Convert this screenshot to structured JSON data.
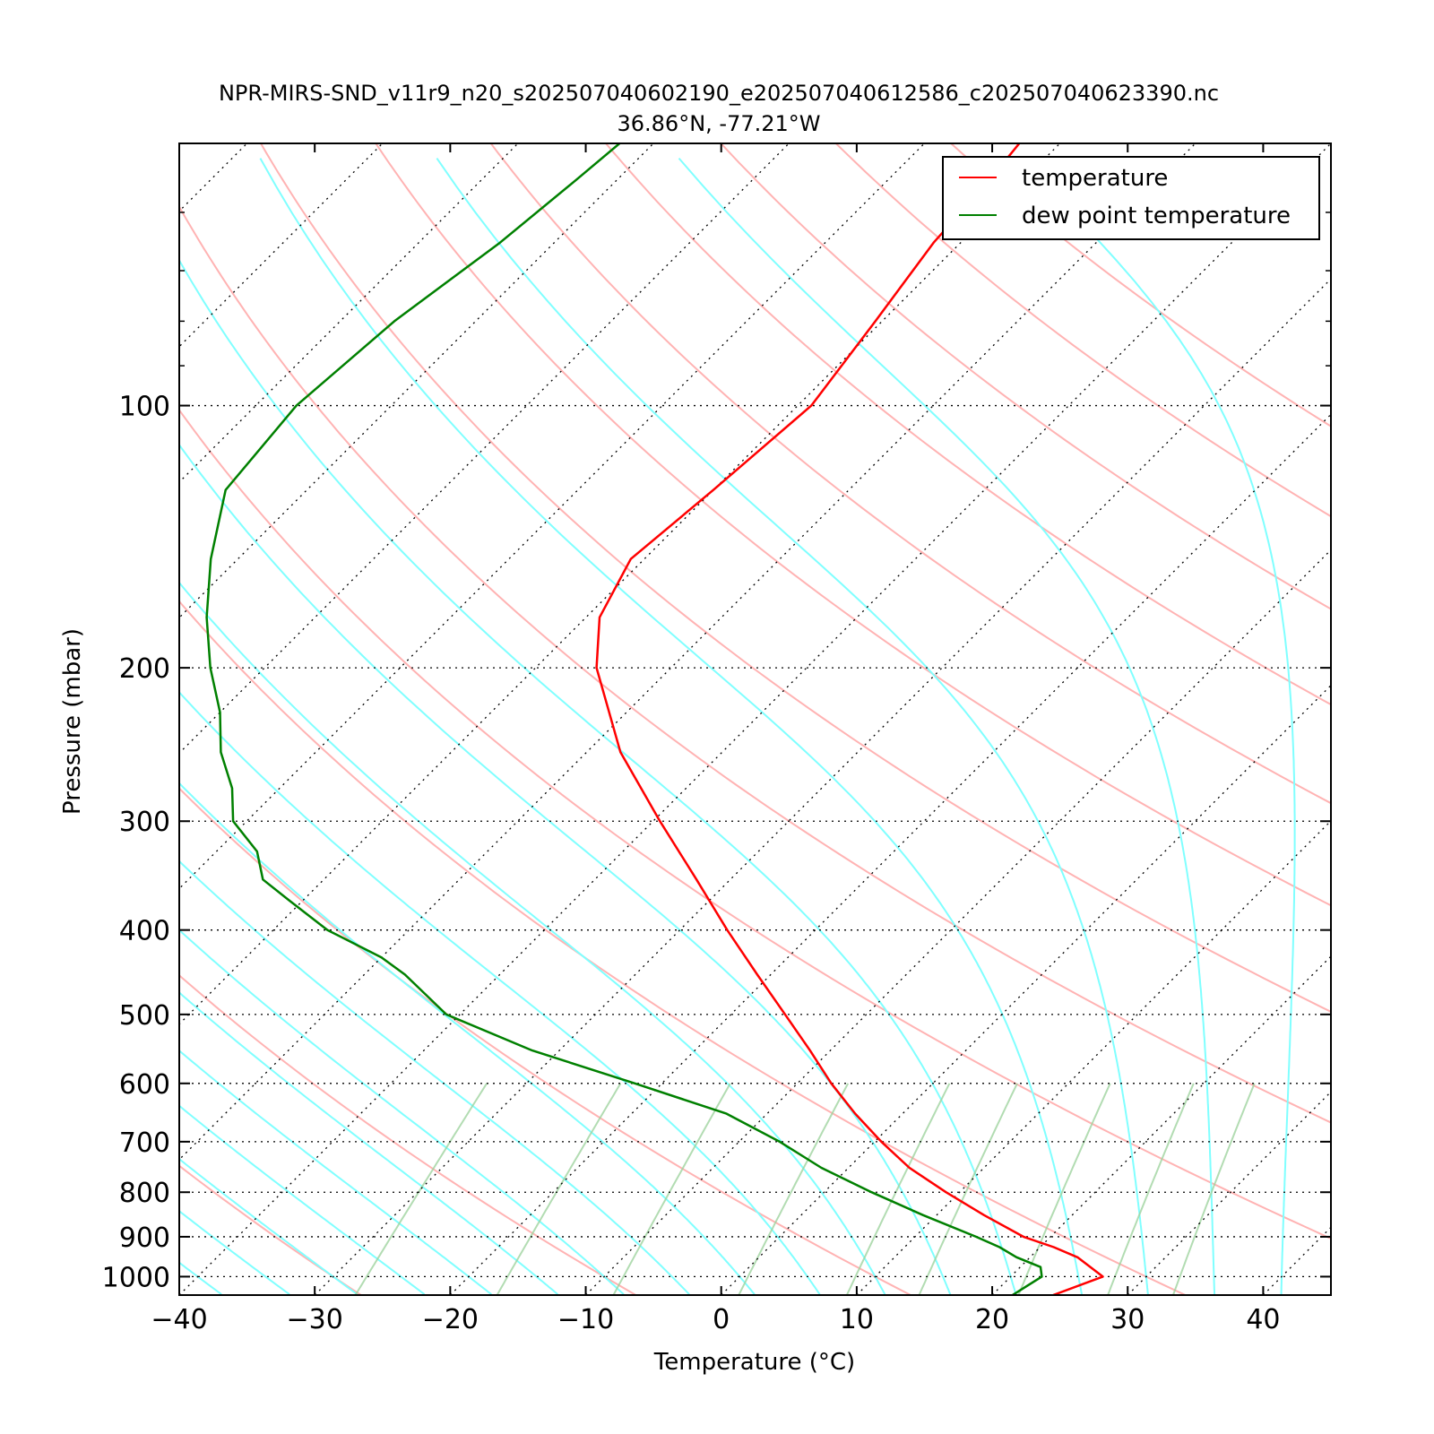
{
  "chart_data": {
    "type": "line",
    "title": "NPR-MIRS-SND_v11r9_n20_s202507040602190_e202507040612586_c202507040623390.nc",
    "subtitle": "36.86°N, -77.21°W",
    "xlabel": "Temperature (°C)",
    "ylabel": "Pressure (mbar)",
    "xlim": [
      -40,
      45
    ],
    "ylim": [
      1050,
      50
    ],
    "y_scale": "log",
    "skew": true,
    "x_ticks": [
      -40,
      -30,
      -20,
      -10,
      0,
      10,
      20,
      30,
      40
    ],
    "x_tick_labels": [
      "−40",
      "−30",
      "−20",
      "−10",
      "0",
      "10",
      "20",
      "30",
      "40"
    ],
    "y_ticks": [
      100,
      200,
      300,
      400,
      500,
      600,
      700,
      800,
      900,
      1000
    ],
    "y_tick_labels": [
      "100",
      "200",
      "300",
      "400",
      "500",
      "600",
      "700",
      "800",
      "900",
      "1000"
    ],
    "grid": "horizontal dotted at labeled pressures; dotted skewed isotherms",
    "background_lines": [
      "dry adiabats",
      "moist adiabats",
      "mixing ratio lines"
    ],
    "legend_position": "top-right",
    "series": [
      {
        "name": "temperature",
        "color": "#ff0000",
        "p": [
          1050,
          1000,
          950,
          925,
          900,
          850,
          800,
          750,
          700,
          650,
          600,
          550,
          500,
          450,
          400,
          350,
          300,
          250,
          200,
          175,
          150,
          125,
          100,
          80,
          65,
          55,
          50
        ],
        "t": [
          24.5,
          26.8,
          23.5,
          21.0,
          18.0,
          13.5,
          9.0,
          4.5,
          0.5,
          -3.5,
          -7.5,
          -11.5,
          -16.0,
          -21.0,
          -26.5,
          -32.5,
          -39.5,
          -47.5,
          -55.5,
          -59.0,
          -61.0,
          -60.0,
          -59.0,
          -60.5,
          -62.0,
          -62.5,
          -63.0
        ]
      },
      {
        "name": "dew point temperature",
        "color": "#008000",
        "p": [
          1050,
          1000,
          975,
          950,
          925,
          900,
          850,
          800,
          750,
          700,
          650,
          600,
          550,
          500,
          450,
          430,
          400,
          370,
          350,
          325,
          300,
          275,
          250,
          225,
          200,
          175,
          150,
          125,
          100,
          80,
          65,
          55,
          50
        ],
        "t": [
          21.5,
          22.3,
          21.5,
          19.0,
          17.0,
          14.5,
          9.0,
          3.5,
          -2.0,
          -7.0,
          -13.0,
          -22.0,
          -32.0,
          -41.0,
          -47.0,
          -50.0,
          -56.0,
          -61.0,
          -64.5,
          -67.0,
          -71.0,
          -73.5,
          -77.0,
          -80.0,
          -84.0,
          -88.0,
          -92.0,
          -96.0,
          -97.0,
          -96.0,
          -94.0,
          -93.0,
          -92.5
        ]
      }
    ]
  }
}
